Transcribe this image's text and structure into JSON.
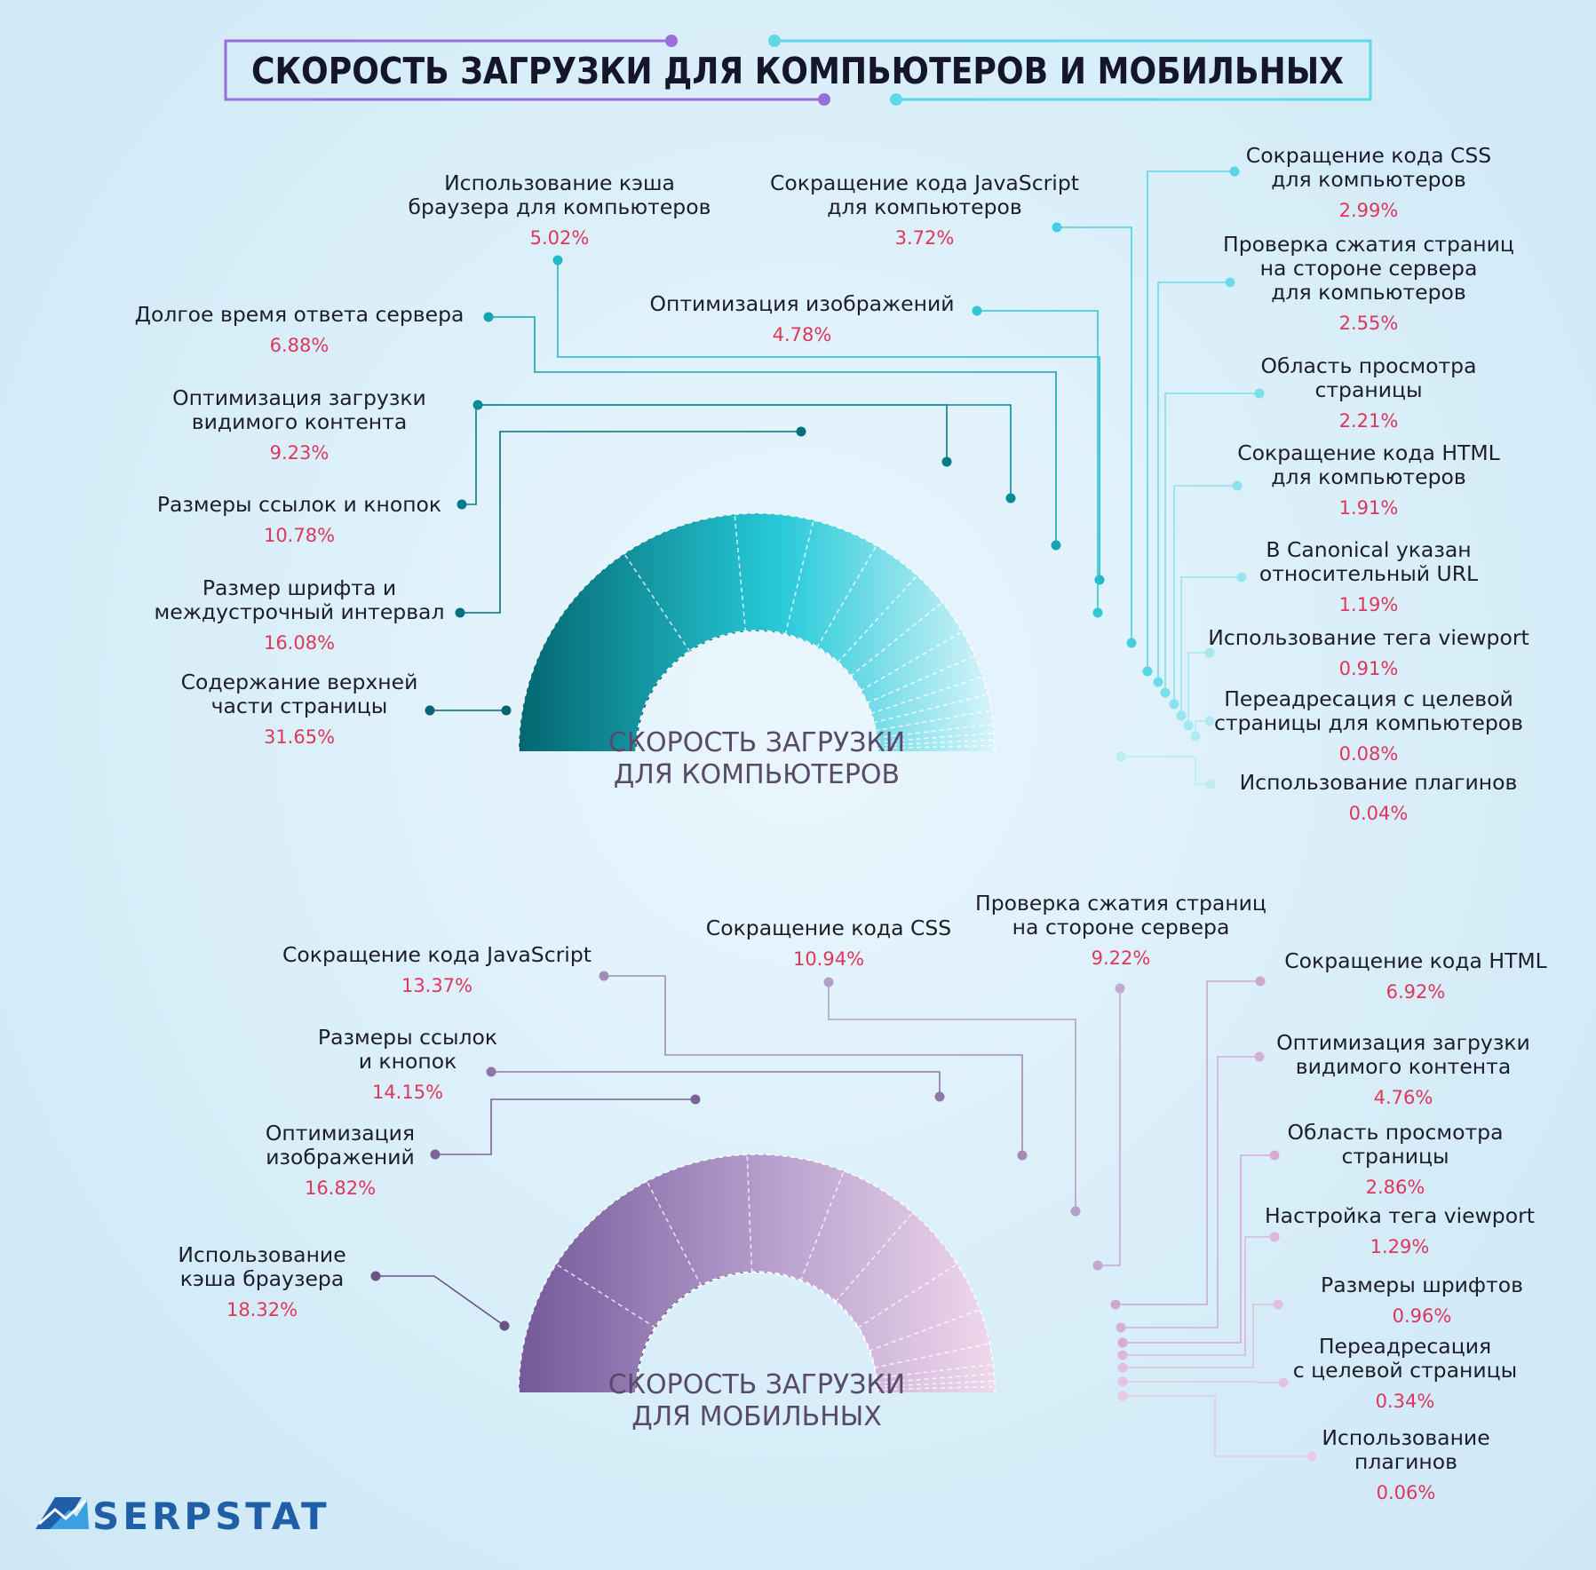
{
  "title": "СКОРОСТЬ ЗАГРУЗКИ ДЛЯ КОМПЬЮТЕРОВ И МОБИЛЬНЫХ",
  "logo": {
    "text": "SERPSTAT",
    "icon": "serpstat-logo-icon"
  },
  "colors": {
    "desktop_dark": "#03666f",
    "desktop_mid": "#27cad9",
    "desktop_light": "#d8f4fa",
    "mobile_dark": "#74599a",
    "mobile_mid": "#b9a2cf",
    "mobile_light": "#f0d8ec",
    "percent": "#e0365a"
  },
  "chart_data": [
    {
      "type": "pie",
      "variant": "half-donut",
      "title": "СКОРОСТЬ ЗАГРУЗКИ ДЛЯ КОМПЬЮТЕРОВ",
      "center_lines": [
        "СКОРОСТЬ ЗАГРУЗКИ",
        "ДЛЯ КОМПЬЮТЕРОВ"
      ],
      "slices": [
        {
          "label_lines": [
            "Содержание верхней",
            "части страницы"
          ],
          "value": 31.65,
          "display": "31.65%"
        },
        {
          "label_lines": [
            "Размер шрифта и",
            "междустрочный интервал"
          ],
          "value": 16.08,
          "display": "16.08%"
        },
        {
          "label_lines": [
            "Размеры ссылок и кнопок"
          ],
          "value": 10.78,
          "display": "10.78%"
        },
        {
          "label_lines": [
            "Оптимизация загрузки",
            "видимого контента"
          ],
          "value": 9.23,
          "display": "9.23%"
        },
        {
          "label_lines": [
            "Долгое время ответа сервера"
          ],
          "value": 6.88,
          "display": "6.88%"
        },
        {
          "label_lines": [
            "Использование кэша",
            "браузера для компьютеров"
          ],
          "value": 5.02,
          "display": "5.02%"
        },
        {
          "label_lines": [
            "Оптимизация изображений"
          ],
          "value": 4.78,
          "display": "4.78%"
        },
        {
          "label_lines": [
            "Сокращение кода JavaScript",
            "для компьютеров"
          ],
          "value": 3.72,
          "display": "3.72%"
        },
        {
          "label_lines": [
            "Сокращение кода CSS",
            "для  компьютеров"
          ],
          "value": 2.99,
          "display": "2.99%"
        },
        {
          "label_lines": [
            "Проверка сжатия страниц",
            "на стороне сервера",
            "для компьютеров"
          ],
          "value": 2.55,
          "display": "2.55%"
        },
        {
          "label_lines": [
            "Область просмотра",
            "страницы"
          ],
          "value": 2.21,
          "display": "2.21%"
        },
        {
          "label_lines": [
            "Сокращение кода HTML",
            "для компьютеров"
          ],
          "value": 1.91,
          "display": "1.91%"
        },
        {
          "label_lines": [
            "В Canonical указан",
            "относительный URL"
          ],
          "value": 1.19,
          "display": "1.19%"
        },
        {
          "label_lines": [
            "Использование тега viewport"
          ],
          "value": 0.91,
          "display": "0.91%"
        },
        {
          "label_lines": [
            "Переадресация с целевой",
            "страницы для компьютеров"
          ],
          "value": 0.08,
          "display": "0.08%"
        },
        {
          "label_lines": [
            "Использование плагинов"
          ],
          "value": 0.04,
          "display": "0.04%"
        }
      ]
    },
    {
      "type": "pie",
      "variant": "half-donut",
      "title": "СКОРОСТЬ ЗАГРУЗКИ ДЛЯ МОБИЛЬНЫХ",
      "center_lines": [
        "СКОРОСТЬ ЗАГРУЗКИ",
        "ДЛЯ МОБИЛЬНЫХ"
      ],
      "slices": [
        {
          "label_lines": [
            "Использование",
            "кэша браузера"
          ],
          "value": 18.32,
          "display": "18.32%"
        },
        {
          "label_lines": [
            "Оптимизация",
            "изображений"
          ],
          "value": 16.82,
          "display": "16.82%"
        },
        {
          "label_lines": [
            "Размеры ссылок",
            "и кнопок"
          ],
          "value": 14.15,
          "display": "14.15%"
        },
        {
          "label_lines": [
            "Сокращение кода JavaScript"
          ],
          "value": 13.37,
          "display": "13.37%"
        },
        {
          "label_lines": [
            "Сокращение кода CSS"
          ],
          "value": 10.94,
          "display": "10.94%"
        },
        {
          "label_lines": [
            "Проверка сжатия страниц",
            "на стороне сервера"
          ],
          "value": 9.22,
          "display": "9.22%"
        },
        {
          "label_lines": [
            "Сокращение кода HTML"
          ],
          "value": 6.92,
          "display": "6.92%"
        },
        {
          "label_lines": [
            "Оптимизация загрузки",
            "видимого контента"
          ],
          "value": 4.76,
          "display": "4.76%"
        },
        {
          "label_lines": [
            "Область просмотра",
            "страницы"
          ],
          "value": 2.86,
          "display": "2.86%"
        },
        {
          "label_lines": [
            "Настройка тега viewport"
          ],
          "value": 1.29,
          "display": "1.29%"
        },
        {
          "label_lines": [
            "Размеры шрифтов"
          ],
          "value": 0.96,
          "display": "0.96%"
        },
        {
          "label_lines": [
            "Переадресация",
            "с целевой страницы"
          ],
          "value": 0.34,
          "display": "0.34%"
        },
        {
          "label_lines": [
            "Использование",
            "плагинов"
          ],
          "value": 0.06,
          "display": "0.06%"
        }
      ]
    }
  ]
}
